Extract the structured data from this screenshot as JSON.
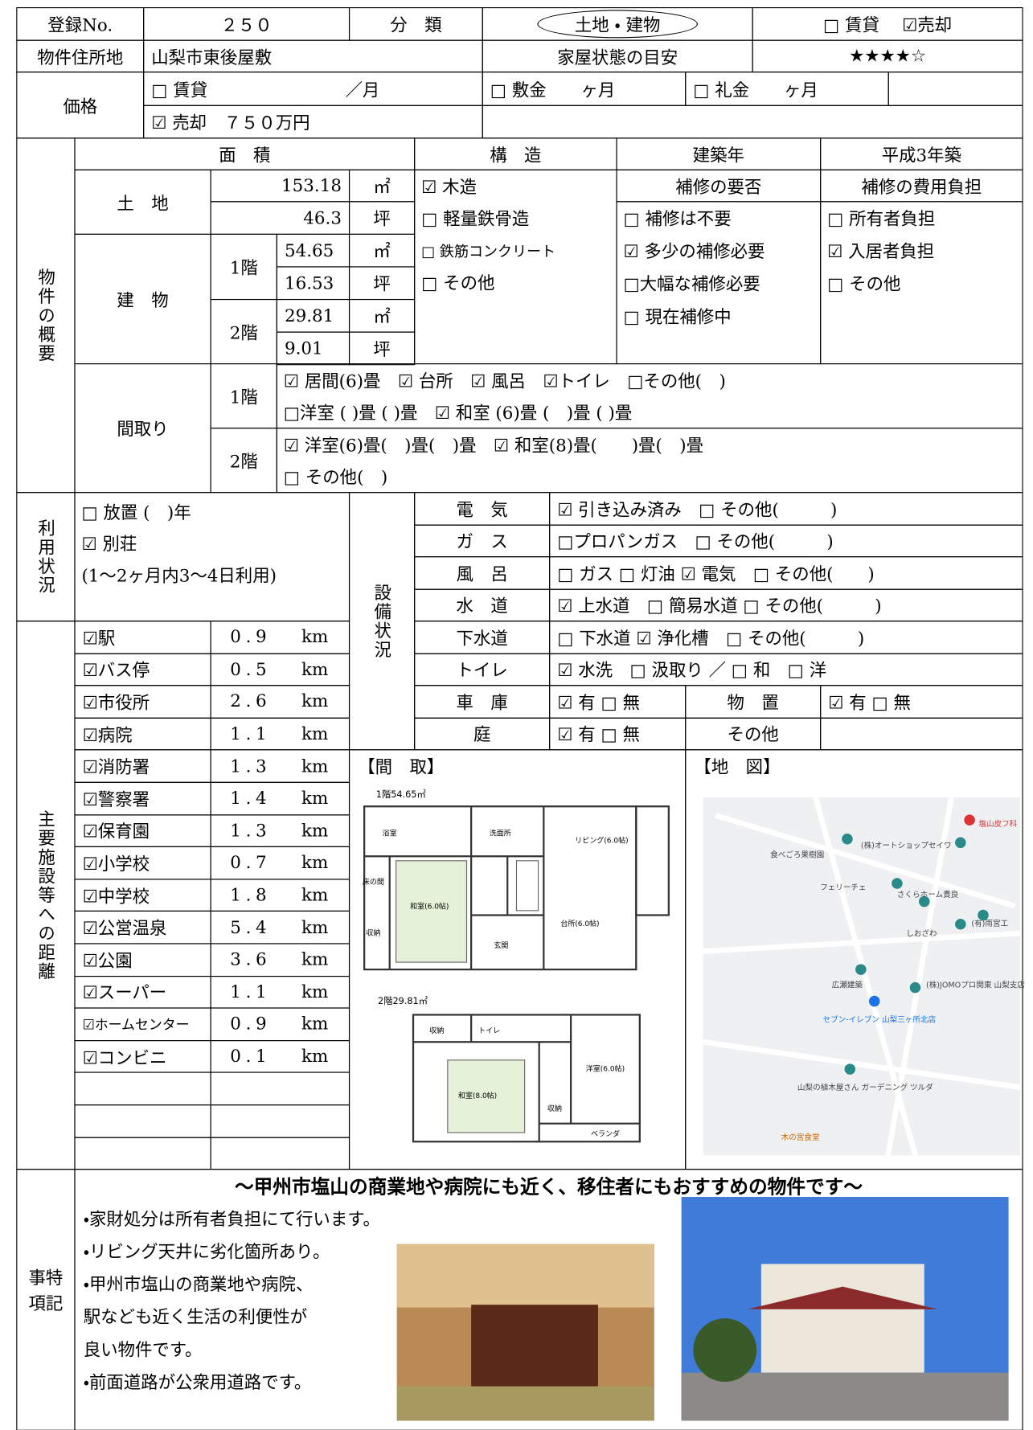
{
  "header": {
    "reg_label": "登録No.",
    "reg_no": "２５０",
    "class_label": "分　類",
    "class_value": "土地 ・ 建物",
    "deal": "□ 賃貸　 ☑売却"
  },
  "address": {
    "label": "物件住所地",
    "value": "山梨市東後屋敷",
    "condition_label": "家屋状態の目安",
    "condition_value": "★★★★☆"
  },
  "price": {
    "label": "価格",
    "rent": "□ 賃貸　　　　　　　　／月",
    "sale": "☑ 売却　７５０万円",
    "deposit": "□ 敷金　　ヶ月",
    "key_money": "□ 礼金　　ヶ月"
  },
  "outline": {
    "label": "物件の概要",
    "area_label": "面　積",
    "structure_label": "構　造",
    "built_label": "建築年",
    "built_value": "平成3年築",
    "land_label": "土　地",
    "land_m2": "153.18",
    "land_tsubo": "46.3",
    "unit_m2": "㎡",
    "unit_tsubo": "坪",
    "building_label": "建　物",
    "floor1": "1階",
    "floor1_m2": "54.65",
    "floor1_tsubo": "16.53",
    "floor2": "2階",
    "floor2_m2": "29.81",
    "floor2_tsubo": "9.01",
    "structure_options": [
      "☑ 木造",
      "□ 軽量鉄骨造",
      "□ 鉄筋コンクリート",
      "□ その他"
    ],
    "repair_label": "補修の要否",
    "repair_options": [
      "□ 補修は不要",
      "☑ 多少の補修必要",
      "□大幅な補修必要",
      "□ 現在補修中"
    ],
    "cost_label": "補修の費用負担",
    "cost_options": [
      "□ 所有者負担",
      "☑ 入居者負担",
      "□ その他"
    ]
  },
  "layout": {
    "label": "間取り",
    "floor1": "1階",
    "floor1_lines": [
      "☑ 居間(6)畳　☑ 台所　☑ 風呂　☑トイレ　□その他(　)",
      "□洋室 ( )畳 ( )畳　☑ 和室 (6)畳 (　)畳 ( )畳"
    ],
    "floor2": "2階",
    "floor2_lines": [
      "☑ 洋室(6)畳(　)畳(　)畳　☑ 和室(8)畳(　　)畳(　)畳",
      "□ その他(　)"
    ]
  },
  "usage": {
    "label": "利用状況",
    "lines": [
      "□ 放置 (　)年",
      "☑ 別荘",
      "(1～2ヶ月内3～4日利用)"
    ]
  },
  "facilities": {
    "label": "設備状況",
    "rows": [
      {
        "label": "電　気",
        "value": "☑ 引き込み済み　□ その他(　　　)"
      },
      {
        "label": "ガ　ス",
        "value": "□プロパンガス　□ その他(　　　)"
      },
      {
        "label": "風　呂",
        "value": "□ ガス □ 灯油 ☑ 電気　□ その他(　　)"
      },
      {
        "label": "水　道",
        "value": "☑ 上水道　□ 簡易水道 □ その他(　　　)"
      },
      {
        "label": "下水道",
        "value": "□ 下水道 ☑ 浄化槽　□ その他(　　　)"
      },
      {
        "label": "トイレ",
        "value": "☑ 水洗　□ 汲取り ／ □ 和　□ 洋"
      },
      {
        "label": "車　庫",
        "value": "☑ 有 □ 無",
        "sub_label": "物　置",
        "sub_value": "☑ 有 □ 無"
      },
      {
        "label": "庭",
        "value": "☑ 有 □ 無",
        "sub_label": "その他"
      }
    ]
  },
  "distances": {
    "label": "主要施設等への距離",
    "unit": "km",
    "rows": [
      {
        "name": "☑駅",
        "value": "0.9"
      },
      {
        "name": "☑バス停",
        "value": "0.5"
      },
      {
        "name": "☑市役所",
        "value": "2.6"
      },
      {
        "name": "☑病院",
        "value": "1.1"
      },
      {
        "name": "☑消防署",
        "value": "1.3"
      },
      {
        "name": "☑警察署",
        "value": "1.4"
      },
      {
        "name": "☑保育園",
        "value": "1.3"
      },
      {
        "name": "☑小学校",
        "value": "0.7"
      },
      {
        "name": "☑中学校",
        "value": "1.8"
      },
      {
        "name": "☑公営温泉",
        "value": "5.4"
      },
      {
        "name": "☑公園",
        "value": "3.6"
      },
      {
        "name": "☑スーパー",
        "value": "1.1"
      },
      {
        "name": "☑ホームセンター",
        "value": "0.9"
      },
      {
        "name": "☑コンビニ",
        "value": "0.1"
      }
    ]
  },
  "floor_plan": {
    "label": "【間　取】",
    "floor1_caption": "1階54.65㎡",
    "floor2_caption": "2階29.81㎡",
    "floor1_rooms": [
      "浴室",
      "洗面所",
      "リビング(6.0帖)",
      "床の間",
      "和室(6.0帖)",
      "台所(6.0帖)",
      "収納",
      "玄関"
    ],
    "floor2_rooms": [
      "収納",
      "トイレ",
      "洋室(6.0帖)",
      "和室(8.0帖)",
      "収納",
      "ベランダ"
    ]
  },
  "map": {
    "label": "【地　図】",
    "places": [
      "塩山皮フ科",
      "(株)オートショップセイワ",
      "食べごろ果樹園",
      "フェリーチェ",
      "さくらホーム貴良",
      "(有)雨宮工",
      "しおざわ",
      "広瀬建築",
      "(株)JOMOプロ関東 山梨支店",
      "セブン-イレブン 山梨三ヶ所北店",
      "山梨の植木屋さん ガーデニング ツルダ",
      "木の宮食堂"
    ]
  },
  "remarks": {
    "label_lines": [
      "事特",
      "項記"
    ],
    "headline": "～甲州市塩山の商業地や病院にも近く、移住者にもおすすめの物件です～",
    "lines": [
      "・家財処分は所有者負担にて行います。",
      "・リビング天井に劣化箇所あり。",
      "・甲州市塩山の商業地や病院、",
      "駅なども近く生活の利便性が",
      "良い物件です。",
      "・前面道路が公衆用道路です。"
    ]
  }
}
